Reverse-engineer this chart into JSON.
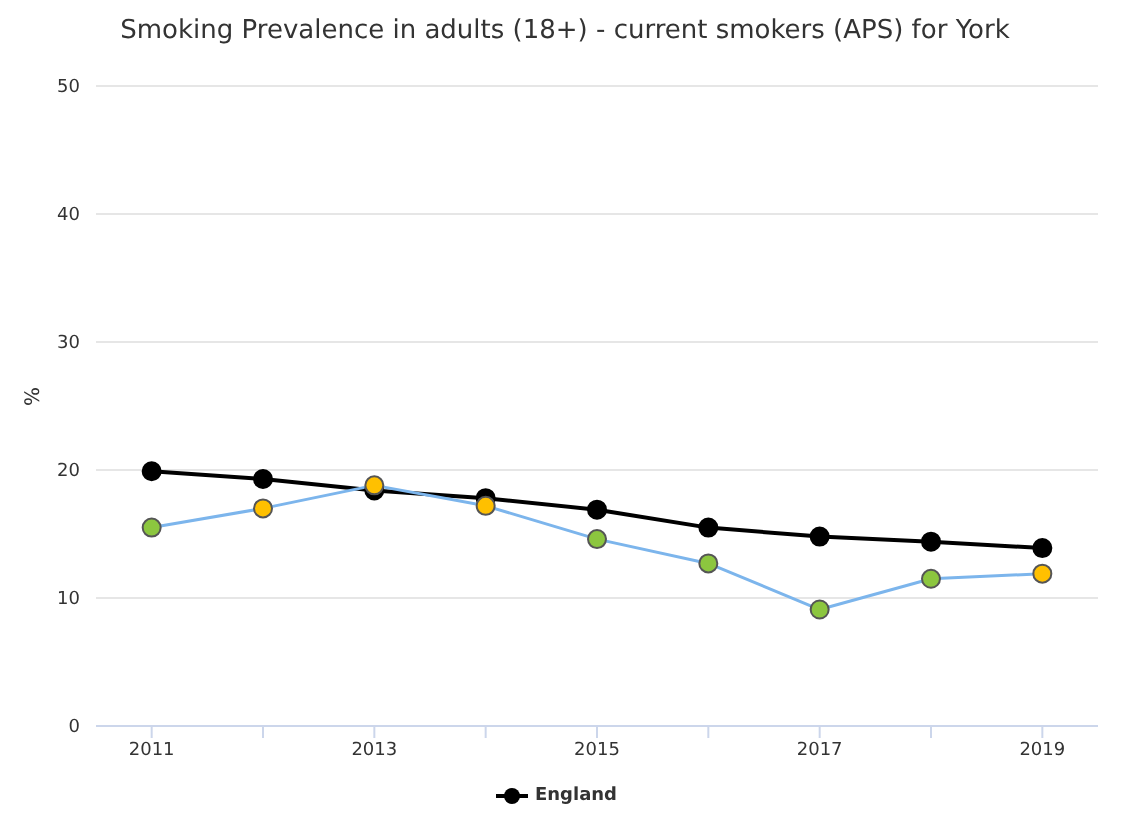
{
  "chart_data": {
    "type": "line",
    "title": "Smoking Prevalence in adults (18+) - current smokers (APS) for York",
    "ylabel": "%",
    "x": [
      2011,
      2012,
      2013,
      2014,
      2015,
      2016,
      2017,
      2018,
      2019
    ],
    "series": [
      {
        "name": "England",
        "color": "#000000",
        "values": [
          19.9,
          19.3,
          18.4,
          17.8,
          16.9,
          15.5,
          14.8,
          14.4,
          13.9
        ]
      },
      {
        "color": "#7cb5ec",
        "colors": [
          "#8cc63f",
          "#ffc000",
          "#ffc000",
          "#ffc000",
          "#8cc63f",
          "#8cc63f",
          "#8cc63f",
          "#8cc63f",
          "#ffc000"
        ],
        "values": [
          15.5,
          17.0,
          18.8,
          17.2,
          14.6,
          12.7,
          9.1,
          11.5,
          11.9
        ]
      }
    ],
    "xlim": [
      2010.5,
      2019.5
    ],
    "xticks": [
      2011,
      {
        "value": 2012,
        "label": null
      },
      2013,
      {
        "value": 2014,
        "label": null
      },
      2015,
      {
        "value": 2016,
        "label": null
      },
      2017,
      {
        "value": 2018,
        "label": null
      },
      2019
    ],
    "ylim": [
      0,
      50
    ],
    "yticks": [
      0,
      10,
      20,
      30,
      40,
      50
    ],
    "grid": "y",
    "legend": "bottom",
    "marker": "circle",
    "line_style": "solid"
  }
}
